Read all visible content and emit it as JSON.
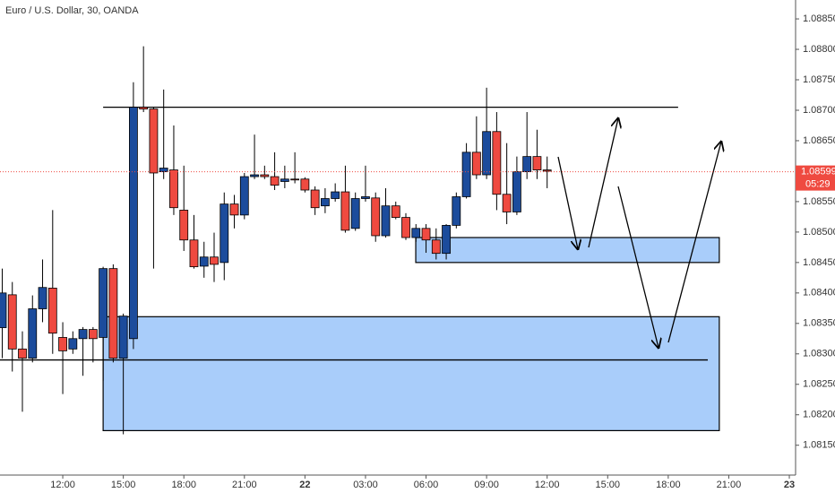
{
  "chart_data": {
    "type": "candlestick",
    "title": "Euro / U.S. Dollar, 30, OANDA",
    "x": [
      9,
      9.5,
      10,
      10.5,
      11,
      11.5,
      12,
      12.5,
      13,
      13.5,
      14,
      14.5,
      15,
      15.5,
      16,
      16.5,
      17,
      17.5,
      18,
      18.5,
      19,
      19.5,
      20,
      20.5,
      21,
      21.5,
      22,
      22.5,
      23,
      23.5,
      24,
      24.5,
      25,
      25.5,
      26,
      26.5,
      27,
      27.5,
      28,
      28.5,
      29,
      29.5,
      30,
      30.5,
      31,
      31.5,
      32,
      32.5,
      33,
      33.5,
      34,
      34.5,
      35,
      35.5,
      36
    ],
    "open": [
      1.08343,
      1.08397,
      1.08308,
      1.08293,
      1.08374,
      1.08408,
      1.08327,
      1.08308,
      1.08325,
      1.0834,
      1.08327,
      1.0844,
      1.08293,
      1.08325,
      1.08705,
      1.08702,
      1.08599,
      1.08602,
      1.08536,
      1.08487,
      1.08444,
      1.08459,
      1.0845,
      1.08546,
      1.08528,
      1.08591,
      1.08594,
      1.08591,
      1.08583,
      1.08587,
      1.08587,
      1.08569,
      1.08543,
      1.08555,
      1.08566,
      1.08506,
      1.08555,
      1.08556,
      1.08494,
      1.08543,
      1.08524,
      1.08491,
      1.08506,
      1.08487,
      1.08465,
      1.08511,
      1.08558,
      1.08631,
      1.08594,
      1.08665,
      1.08562,
      1.08533,
      1.08599,
      1.08624,
      1.08602
    ],
    "high": [
      1.0844,
      1.08418,
      1.08337,
      1.08396,
      1.08455,
      1.08536,
      1.08352,
      1.08337,
      1.08344,
      1.08344,
      1.08443,
      1.08447,
      1.08366,
      1.08746,
      1.08805,
      1.08705,
      1.08734,
      1.08675,
      1.08609,
      1.08528,
      1.08484,
      1.08499,
      1.08565,
      1.08561,
      1.08597,
      1.0866,
      1.08609,
      1.08631,
      1.08609,
      1.08631,
      1.0859,
      1.08575,
      1.08572,
      1.0858,
      1.08609,
      1.08565,
      1.08609,
      1.08565,
      1.08572,
      1.0855,
      1.08531,
      1.08513,
      1.08513,
      1.08506,
      1.08513,
      1.08565,
      1.08646,
      1.0869,
      1.08737,
      1.08697,
      1.08646,
      1.08624,
      1.08697,
      1.08668,
      1.08624
    ],
    "low": [
      1.08293,
      1.08271,
      1.08205,
      1.08286,
      1.08352,
      1.083,
      1.08234,
      1.083,
      1.08264,
      1.08286,
      1.08256,
      1.08286,
      1.08168,
      1.08308,
      1.08697,
      1.0844,
      1.08587,
      1.08528,
      1.08469,
      1.0844,
      1.08425,
      1.08418,
      1.08421,
      1.08506,
      1.08521,
      1.08587,
      1.08587,
      1.08569,
      1.08572,
      1.0858,
      1.08565,
      1.08528,
      1.08531,
      1.0855,
      1.08499,
      1.08502,
      1.0855,
      1.08484,
      1.08491,
      1.08521,
      1.08487,
      1.08484,
      1.08466,
      1.08455,
      1.08455,
      1.08506,
      1.08555,
      1.08587,
      1.08587,
      1.08536,
      1.08513,
      1.08528,
      1.08587,
      1.08587,
      1.08572
    ],
    "close": [
      1.084,
      1.08308,
      1.08293,
      1.08374,
      1.08409,
      1.08334,
      1.08305,
      1.08325,
      1.0834,
      1.08325,
      1.0844,
      1.08293,
      1.08362,
      1.08705,
      1.08702,
      1.08597,
      1.08605,
      1.0854,
      1.08487,
      1.08443,
      1.08459,
      1.08447,
      1.08546,
      1.08528,
      1.08591,
      1.08594,
      1.08591,
      1.08577,
      1.08587,
      1.08586,
      1.08569,
      1.0854,
      1.08555,
      1.08566,
      1.08503,
      1.08555,
      1.08558,
      1.08494,
      1.08543,
      1.08524,
      1.08491,
      1.08506,
      1.08487,
      1.08465,
      1.08511,
      1.08558,
      1.08631,
      1.08594,
      1.08665,
      1.08562,
      1.08533,
      1.08599,
      1.08624,
      1.08602,
      1.086
    ],
    "up_color": "#1c4c9c",
    "down_color": "#ef4a40",
    "xlim": [
      8.89,
      48.31
    ],
    "ylim": [
      1.08101,
      1.08881
    ],
    "xticks": [
      {
        "value": 12,
        "label": "12:00"
      },
      {
        "value": 15,
        "label": "15:00"
      },
      {
        "value": 18,
        "label": "18:00"
      },
      {
        "value": 21,
        "label": "21:00"
      },
      {
        "value": 24,
        "label": "22"
      },
      {
        "value": 27,
        "label": "03:00"
      },
      {
        "value": 30,
        "label": "06:00"
      },
      {
        "value": 33,
        "label": "09:00"
      },
      {
        "value": 36,
        "label": "12:00"
      },
      {
        "value": 39,
        "label": "15:00"
      },
      {
        "value": 42,
        "label": "18:00"
      },
      {
        "value": 45,
        "label": "21:00"
      },
      {
        "value": 48,
        "label": "23"
      }
    ],
    "yticks": [
      {
        "value": 1.0885,
        "label": "1.08850"
      },
      {
        "value": 1.088,
        "label": "1.08800"
      },
      {
        "value": 1.0875,
        "label": "1.08750"
      },
      {
        "value": 1.087,
        "label": "1.08700"
      },
      {
        "value": 1.0865,
        "label": "1.08650"
      },
      {
        "value": 1.0855,
        "label": "1.08550"
      },
      {
        "value": 1.085,
        "label": "1.08500"
      },
      {
        "value": 1.0845,
        "label": "1.08450"
      },
      {
        "value": 1.084,
        "label": "1.08400"
      },
      {
        "value": 1.0835,
        "label": "1.08350"
      },
      {
        "value": 1.083,
        "label": "1.08300"
      },
      {
        "value": 1.0825,
        "label": "1.08250"
      },
      {
        "value": 1.082,
        "label": "1.08200"
      },
      {
        "value": 1.0815,
        "label": "1.08150"
      }
    ],
    "last_price": 1.08599,
    "countdown": "05:29",
    "levels": [
      {
        "price": 1.08705,
        "x": [
          14,
          42.49
        ]
      },
      {
        "price": 1.0829,
        "x": [
          8.89,
          43.96
        ]
      }
    ],
    "zones": [
      {
        "low": 1.0845,
        "high": 1.08491,
        "x": [
          29.49,
          44.53
        ]
      },
      {
        "low": 1.08174,
        "high": 1.08361,
        "x": [
          14,
          44.53
        ]
      }
    ]
  }
}
